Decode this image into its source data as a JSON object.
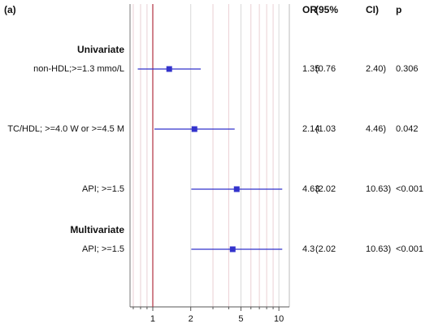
{
  "chart_data": {
    "type": "forest",
    "title": "(a)",
    "columns": [
      "OR",
      "(95%",
      "CI)",
      "p"
    ],
    "group_labels": [
      "Univariate",
      null,
      null,
      "Multivariate"
    ],
    "categories": [
      "non-HDL;>=1.3 mmo/L",
      "TC/HDL; >=4.0 W or >=4.5 M",
      "API; >=1.5",
      "API; >=1.5"
    ],
    "values": [
      1.35,
      2.14,
      4.63,
      4.3
    ],
    "lower": [
      0.76,
      1.03,
      2.02,
      2.02
    ],
    "lower_labels": [
      "(0.76",
      "(1.03",
      "(2.02",
      "(2.02"
    ],
    "upper": [
      2.4,
      4.46,
      10.63,
      10.63
    ],
    "upper_labels": [
      "2.40)",
      "4.46)",
      "10.63)",
      "10.63)"
    ],
    "p_labels": [
      "0.306",
      "0.042",
      "<0.001",
      "<0.001"
    ],
    "color": "#3333cc",
    "ref_line": 1,
    "ref_color": "#b03040",
    "log_x": true,
    "xlim": [
      0.66,
      12.1
    ],
    "xticks": [
      1,
      2,
      5,
      10
    ],
    "xminor_ticks": [
      0.7,
      0.8,
      0.9,
      3,
      4,
      6,
      7,
      8,
      9
    ],
    "grid": true
  }
}
